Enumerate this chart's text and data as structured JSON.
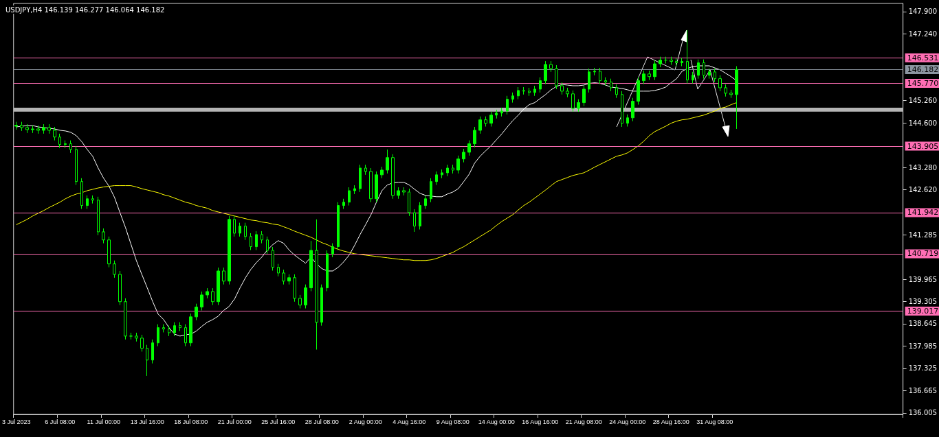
{
  "chart_data": {
    "type": "candlestick",
    "title": "USDJPY,H4 146.139 146.277 146.064 146.182",
    "color": "#00ff00",
    "categories": [
      "3 Jul 2023",
      null,
      null,
      null,
      null,
      null,
      null,
      null,
      "6 Jul 08:00",
      null,
      null,
      null,
      null,
      null,
      null,
      null,
      "11 Jul 00:00",
      null,
      null,
      null,
      null,
      null,
      null,
      null,
      "13 Jul 16:00",
      null,
      null,
      null,
      null,
      null,
      null,
      null,
      "18 Jul 08:00",
      null,
      null,
      null,
      null,
      null,
      null,
      null,
      "21 Jul 00:00",
      null,
      null,
      null,
      null,
      null,
      null,
      null,
      "25 Jul 16:00",
      null,
      null,
      null,
      null,
      null,
      null,
      null,
      "28 Jul 08:00",
      null,
      null,
      null,
      null,
      null,
      null,
      null,
      "2 Aug 00:00",
      null,
      null,
      null,
      null,
      null,
      null,
      null,
      "4 Aug 16:00",
      null,
      null,
      null,
      null,
      null,
      null,
      null,
      "9 Aug 08:00",
      null,
      null,
      null,
      null,
      null,
      null,
      null,
      "14 Aug 00:00",
      null,
      null,
      null,
      null,
      null,
      null,
      null,
      "16 Aug 16:00",
      null,
      null,
      null,
      null,
      null,
      null,
      null,
      "21 Aug 08:00",
      null,
      null,
      null,
      null,
      null,
      null,
      null,
      "24 Aug 00:00",
      null,
      null,
      null,
      null,
      null,
      null,
      null,
      "28 Aug 16:00",
      null,
      null,
      null,
      null,
      null,
      null,
      null,
      "31 Aug 08:00",
      null,
      null,
      null,
      null,
      null,
      null,
      null,
      null,
      null,
      null,
      null,
      null,
      null,
      null,
      null,
      null,
      null,
      null,
      null,
      null,
      null,
      null,
      null,
      null,
      null,
      null,
      null,
      null,
      null,
      null,
      null,
      null,
      null,
      null
    ],
    "ohlc": [
      [
        144.5,
        144.63,
        144.4,
        144.53
      ],
      [
        144.53,
        144.63,
        144.36,
        144.46
      ],
      [
        144.46,
        144.56,
        144.3,
        144.4
      ],
      [
        144.4,
        144.52,
        144.3,
        144.42
      ],
      [
        144.42,
        144.52,
        144.28,
        144.38
      ],
      [
        144.38,
        144.56,
        144.28,
        144.46
      ],
      [
        144.46,
        144.56,
        144.28,
        144.38
      ],
      [
        144.38,
        144.48,
        144.08,
        144.18
      ],
      [
        144.18,
        144.28,
        143.86,
        143.96
      ],
      [
        143.96,
        144.08,
        143.86,
        143.98
      ],
      [
        143.98,
        144.08,
        143.71,
        143.81
      ],
      [
        143.81,
        143.91,
        142.76,
        142.86
      ],
      [
        142.86,
        142.96,
        142.05,
        142.15
      ],
      [
        142.15,
        142.45,
        142.05,
        142.35
      ],
      [
        142.35,
        142.45,
        142.21,
        142.31
      ],
      [
        142.31,
        142.41,
        141.27,
        141.37
      ],
      [
        141.37,
        141.47,
        141.03,
        141.13
      ],
      [
        141.13,
        141.23,
        140.32,
        140.42
      ],
      [
        140.42,
        140.52,
        140.01,
        140.11
      ],
      [
        140.11,
        140.21,
        139.2,
        139.3
      ],
      [
        139.3,
        139.4,
        138.18,
        138.28
      ],
      [
        138.28,
        138.38,
        138.18,
        138.28
      ],
      [
        138.28,
        138.38,
        138.12,
        138.22
      ],
      [
        138.22,
        138.32,
        137.82,
        137.92
      ],
      [
        137.92,
        138.02,
        137.1,
        137.57
      ],
      [
        137.57,
        138.18,
        137.47,
        138.08
      ],
      [
        138.08,
        138.63,
        137.98,
        138.53
      ],
      [
        138.53,
        138.63,
        138.39,
        138.49
      ],
      [
        138.49,
        138.59,
        138.28,
        138.38
      ],
      [
        138.38,
        138.69,
        138.28,
        138.59
      ],
      [
        138.59,
        138.69,
        138.43,
        138.53
      ],
      [
        138.53,
        138.63,
        137.98,
        138.08
      ],
      [
        138.08,
        138.95,
        137.98,
        138.85
      ],
      [
        138.85,
        139.24,
        138.75,
        139.14
      ],
      [
        139.14,
        139.6,
        139.04,
        139.5
      ],
      [
        139.5,
        139.7,
        139.4,
        139.6
      ],
      [
        139.6,
        139.7,
        139.2,
        139.3
      ],
      [
        139.3,
        140.31,
        139.2,
        140.21
      ],
      [
        140.21,
        140.31,
        139.81,
        139.91
      ],
      [
        139.91,
        141.84,
        139.81,
        141.74
      ],
      [
        141.74,
        141.84,
        141.23,
        141.33
      ],
      [
        141.33,
        141.64,
        141.23,
        141.54
      ],
      [
        141.54,
        141.64,
        141.13,
        141.23
      ],
      [
        141.23,
        141.33,
        140.83,
        140.93
      ],
      [
        140.93,
        141.39,
        140.83,
        141.29
      ],
      [
        141.29,
        141.39,
        141.03,
        141.13
      ],
      [
        141.13,
        141.23,
        140.72,
        140.82
      ],
      [
        140.82,
        140.92,
        140.22,
        140.32
      ],
      [
        140.32,
        140.42,
        140.05,
        140.15
      ],
      [
        140.15,
        140.25,
        139.81,
        139.91
      ],
      [
        139.91,
        140.11,
        139.81,
        140.01
      ],
      [
        140.01,
        140.11,
        139.3,
        139.4
      ],
      [
        139.4,
        139.5,
        139.1,
        139.2
      ],
      [
        139.2,
        139.81,
        139.1,
        139.71
      ],
      [
        139.71,
        141.1,
        139.61,
        140.82
      ],
      [
        140.82,
        141.74,
        137.88,
        138.69
      ],
      [
        138.69,
        139.81,
        138.59,
        139.71
      ],
      [
        139.71,
        140.82,
        139.61,
        140.72
      ],
      [
        140.72,
        141.03,
        140.62,
        140.93
      ],
      [
        140.93,
        142.25,
        140.83,
        142.15
      ],
      [
        142.15,
        142.35,
        142.05,
        142.25
      ],
      [
        142.25,
        142.69,
        142.15,
        142.59
      ],
      [
        142.59,
        142.75,
        142.49,
        142.65
      ],
      [
        142.65,
        143.36,
        142.55,
        143.26
      ],
      [
        143.26,
        143.36,
        143.06,
        143.16
      ],
      [
        143.16,
        143.26,
        142.25,
        142.35
      ],
      [
        142.35,
        143.16,
        142.25,
        143.06
      ],
      [
        143.06,
        143.3,
        142.96,
        143.2
      ],
      [
        143.2,
        143.81,
        143.1,
        143.57
      ],
      [
        143.57,
        143.67,
        142.35,
        142.45
      ],
      [
        142.45,
        142.69,
        142.35,
        142.59
      ],
      [
        142.59,
        142.69,
        142.45,
        142.55
      ],
      [
        142.55,
        142.65,
        141.84,
        141.94
      ],
      [
        141.94,
        142.04,
        141.37,
        141.54
      ],
      [
        141.54,
        142.25,
        141.44,
        142.15
      ],
      [
        142.15,
        142.45,
        142.05,
        142.35
      ],
      [
        142.35,
        142.96,
        142.25,
        142.86
      ],
      [
        142.86,
        143.16,
        142.76,
        143.06
      ],
      [
        143.06,
        143.22,
        142.96,
        143.12
      ],
      [
        143.12,
        143.36,
        143.02,
        143.26
      ],
      [
        143.26,
        143.36,
        143.1,
        143.2
      ],
      [
        143.2,
        143.63,
        143.1,
        143.53
      ],
      [
        143.53,
        143.83,
        143.43,
        143.73
      ],
      [
        143.73,
        144.08,
        143.63,
        143.98
      ],
      [
        143.98,
        144.48,
        143.88,
        144.38
      ],
      [
        144.38,
        144.79,
        144.28,
        144.69
      ],
      [
        144.69,
        144.79,
        144.49,
        144.59
      ],
      [
        144.59,
        144.93,
        144.49,
        144.83
      ],
      [
        144.83,
        144.99,
        144.73,
        144.89
      ],
      [
        144.89,
        145.05,
        144.79,
        144.95
      ],
      [
        144.95,
        145.4,
        144.85,
        145.3
      ],
      [
        145.3,
        145.5,
        145.2,
        145.4
      ],
      [
        145.4,
        145.66,
        145.3,
        145.56
      ],
      [
        145.56,
        145.66,
        145.44,
        145.54
      ],
      [
        145.54,
        145.64,
        145.4,
        145.5
      ],
      [
        145.5,
        145.7,
        145.4,
        145.6
      ],
      [
        145.6,
        145.95,
        145.5,
        145.85
      ],
      [
        145.85,
        146.43,
        145.75,
        146.33
      ],
      [
        146.33,
        146.43,
        146.11,
        146.21
      ],
      [
        146.21,
        146.31,
        145.6,
        145.7
      ],
      [
        145.7,
        145.8,
        145.44,
        145.54
      ],
      [
        145.54,
        145.64,
        145.36,
        145.46
      ],
      [
        145.46,
        145.56,
        144.93,
        145.03
      ],
      [
        145.03,
        145.3,
        144.93,
        145.2
      ],
      [
        145.2,
        145.7,
        145.1,
        145.6
      ],
      [
        145.6,
        146.21,
        145.5,
        146.11
      ],
      [
        146.11,
        146.23,
        146.01,
        146.13
      ],
      [
        146.13,
        146.23,
        145.75,
        145.85
      ],
      [
        145.85,
        145.95,
        145.71,
        145.81
      ],
      [
        145.81,
        145.91,
        145.54,
        145.64
      ],
      [
        145.64,
        145.74,
        145.34,
        145.44
      ],
      [
        145.44,
        145.54,
        144.48,
        144.59
      ],
      [
        144.59,
        144.85,
        144.49,
        144.75
      ],
      [
        144.75,
        145.34,
        144.65,
        145.24
      ],
      [
        145.24,
        145.95,
        145.14,
        145.85
      ],
      [
        145.85,
        146.15,
        145.75,
        146.05
      ],
      [
        146.05,
        146.15,
        145.87,
        145.97
      ],
      [
        145.97,
        146.45,
        145.87,
        146.35
      ],
      [
        146.35,
        146.56,
        146.25,
        146.46
      ],
      [
        146.46,
        146.56,
        146.36,
        146.46
      ],
      [
        146.46,
        146.56,
        146.32,
        146.42
      ],
      [
        146.42,
        146.52,
        146.28,
        146.38
      ],
      [
        146.38,
        146.52,
        146.28,
        146.42
      ],
      [
        146.42,
        147.35,
        145.77,
        145.87
      ],
      [
        145.87,
        146.11,
        145.77,
        146.01
      ],
      [
        146.01,
        146.48,
        145.91,
        146.38
      ],
      [
        146.38,
        146.48,
        145.91,
        146.01
      ],
      [
        146.01,
        146.21,
        145.91,
        146.11
      ],
      [
        146.11,
        146.21,
        145.81,
        145.91
      ],
      [
        145.91,
        146.01,
        145.54,
        145.64
      ],
      [
        145.64,
        145.74,
        145.38,
        145.48
      ],
      [
        145.48,
        145.58,
        145.34,
        145.44
      ],
      [
        145.44,
        146.28,
        144.42,
        146.182
      ],
      null,
      null,
      null,
      null,
      null,
      null,
      null,
      null,
      null,
      null,
      null,
      null,
      null,
      null,
      null,
      null,
      null,
      null,
      null,
      null,
      null,
      null,
      null,
      null,
      null,
      null,
      null,
      null,
      null,
      null
    ],
    "series": [
      {
        "type": "line",
        "color": "#ffffff",
        "values": [
          144.48,
          144.5,
          144.52,
          144.52,
          144.48,
          144.46,
          144.44,
          144.42,
          144.38,
          144.36,
          144.32,
          144.22,
          144.04,
          143.81,
          143.61,
          143.26,
          142.96,
          142.72,
          142.39,
          141.94,
          141.5,
          141.01,
          140.52,
          140.11,
          139.71,
          139.3,
          138.93,
          138.77,
          138.53,
          138.34,
          138.28,
          138.32,
          138.34,
          138.43,
          138.57,
          138.69,
          138.77,
          138.87,
          139.04,
          139.16,
          139.38,
          139.71,
          140.01,
          140.26,
          140.46,
          140.62,
          140.83,
          140.99,
          141.11,
          141.03,
          140.83,
          140.68,
          140.56,
          140.44,
          140.62,
          140.42,
          140.28,
          140.21,
          140.21,
          140.32,
          140.48,
          140.68,
          140.97,
          141.29,
          141.58,
          141.88,
          142.25,
          142.59,
          142.76,
          142.82,
          142.84,
          142.84,
          142.76,
          142.63,
          142.51,
          142.45,
          142.43,
          142.41,
          142.41,
          142.49,
          142.55,
          142.65,
          142.86,
          143.08,
          143.41,
          143.61,
          143.77,
          143.92,
          144.1,
          144.28,
          144.48,
          144.67,
          144.83,
          145.01,
          145.14,
          145.2,
          145.32,
          145.44,
          145.58,
          145.68,
          145.74,
          145.72,
          145.7,
          145.7,
          145.72,
          145.77,
          145.79,
          145.77,
          145.72,
          145.66,
          145.64,
          145.62,
          145.58,
          145.54,
          145.54,
          145.54,
          145.54,
          145.56,
          145.6,
          145.66,
          145.79,
          145.91,
          146.13,
          146.21,
          146.27,
          146.29,
          146.29,
          146.29,
          146.23,
          146.17,
          146.07,
          145.97,
          145.85,
          null,
          null,
          null,
          null,
          null,
          null,
          null,
          null,
          null,
          null,
          null,
          null,
          null,
          null,
          null,
          null,
          null,
          null,
          null,
          null,
          null,
          null,
          null,
          null,
          null,
          null,
          null,
          null,
          null,
          null
        ]
      },
      {
        "type": "line",
        "color": "#ffff00",
        "values": [
          141.58,
          141.66,
          141.74,
          141.84,
          141.92,
          142.0,
          142.09,
          142.17,
          142.25,
          142.35,
          142.43,
          142.49,
          142.53,
          142.59,
          142.63,
          142.67,
          142.7,
          142.72,
          142.74,
          142.74,
          142.74,
          142.74,
          142.7,
          142.65,
          142.61,
          142.57,
          142.53,
          142.47,
          142.43,
          142.37,
          142.31,
          142.25,
          142.21,
          142.15,
          142.11,
          142.07,
          142.0,
          141.96,
          141.92,
          141.88,
          141.84,
          141.8,
          141.76,
          141.72,
          141.7,
          141.66,
          141.64,
          141.6,
          141.58,
          141.52,
          141.46,
          141.39,
          141.33,
          141.27,
          141.21,
          141.13,
          141.05,
          140.99,
          140.91,
          140.85,
          140.8,
          140.76,
          140.72,
          140.7,
          140.68,
          140.66,
          140.64,
          140.62,
          140.6,
          140.58,
          140.56,
          140.54,
          140.54,
          140.52,
          140.52,
          140.52,
          140.54,
          140.58,
          140.64,
          140.7,
          140.76,
          140.85,
          140.93,
          141.03,
          141.13,
          141.23,
          141.33,
          141.43,
          141.56,
          141.68,
          141.78,
          141.88,
          142.02,
          142.15,
          142.25,
          142.37,
          142.49,
          142.61,
          142.74,
          142.86,
          142.92,
          142.98,
          143.04,
          143.08,
          143.12,
          143.2,
          143.29,
          143.37,
          143.45,
          143.53,
          143.61,
          143.65,
          143.71,
          143.81,
          143.92,
          144.06,
          144.22,
          144.34,
          144.42,
          144.5,
          144.59,
          144.65,
          144.69,
          144.71,
          144.75,
          144.79,
          144.83,
          144.89,
          144.95,
          145.03,
          145.07,
          145.14,
          145.2,
          null,
          null,
          null,
          null,
          null,
          null,
          null,
          null,
          null,
          null,
          null,
          null,
          null,
          null,
          null,
          null,
          null,
          null,
          null,
          null,
          null,
          null,
          null,
          null,
          null,
          null,
          null,
          null,
          null,
          null
        ]
      }
    ],
    "ylim": [
      135.96,
      148.14
    ],
    "yticks": [
      {
        "value": 136.005,
        "label": "136.005"
      },
      {
        "value": 136.665,
        "label": "136.665"
      },
      {
        "value": 137.325,
        "label": "137.325"
      },
      {
        "value": 137.985,
        "label": "137.985"
      },
      {
        "value": 138.645,
        "label": "138.645"
      },
      {
        "value": 139.305,
        "label": "139.305"
      },
      {
        "value": 139.965,
        "label": "139.965"
      },
      {
        "value": 141.285,
        "label": "141.285"
      },
      {
        "value": 142.62,
        "label": "142.620"
      },
      {
        "value": 143.28,
        "label": "143.280"
      },
      {
        "value": 144.6,
        "label": "144.600"
      },
      {
        "value": 145.26,
        "label": "145.260"
      },
      {
        "value": 147.24,
        "label": "147.240"
      },
      {
        "value": 147.9,
        "label": "147.900"
      }
    ],
    "ref_lines": [
      {
        "axis": "y",
        "value": 146.531,
        "label": "146.531",
        "color": "#ff6eb4"
      },
      {
        "axis": "y",
        "value": 146.182,
        "label": "146.182",
        "color": "#8c96a0"
      },
      {
        "axis": "y",
        "value": 145.77,
        "label": "145.770",
        "color": "#ff6eb4"
      },
      {
        "axis": "y",
        "value": 143.905,
        "label": "143.905",
        "color": "#ff6eb4"
      },
      {
        "axis": "y",
        "value": 141.942,
        "label": "141.942",
        "color": "#ff6eb4"
      },
      {
        "axis": "y",
        "value": 140.719,
        "label": "140.719",
        "color": "#ff6eb4"
      },
      {
        "axis": "y",
        "value": 139.017,
        "label": "139.017",
        "color": "#ff6eb4"
      }
    ],
    "bands": [
      {
        "axis": "y",
        "from": 144.93,
        "to": 145.05,
        "color": "#b4b4b4"
      }
    ]
  }
}
